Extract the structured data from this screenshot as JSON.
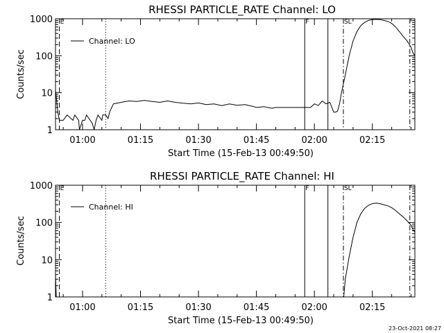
{
  "chart_data": [
    {
      "type": "line",
      "title": "RHESSI PARTICLE_RATE Channel: LO",
      "xlabel": "Start Time (15-Feb-13 00:49:50)",
      "ylabel": "Counts/sec",
      "yscale": "log",
      "ylim": [
        1,
        1000
      ],
      "xlim_minutes": [
        53.0,
        146.0
      ],
      "xtick_labels": [
        "01:00",
        "01:15",
        "01:30",
        "01:45",
        "02:00",
        "02:15"
      ],
      "ytick_labels": [
        "1",
        "10",
        "100",
        "1000"
      ],
      "legend": "Channel: LO",
      "legend_position": "top-left",
      "grid": false,
      "series": [
        {
          "name": "Channel: LO",
          "x_minutes": [
            53.0,
            53.6,
            54.0,
            55.0,
            56.0,
            57.5,
            58.0,
            59.0,
            59.2,
            60.0,
            60.6,
            61.0,
            62.0,
            62.5,
            63.0,
            63.5,
            64.0,
            65.0,
            65.2,
            66.0,
            66.6,
            67.0,
            68.0,
            70,
            72,
            74,
            76,
            78,
            80,
            82,
            84,
            86,
            88,
            90,
            92,
            94,
            96,
            98,
            100,
            102,
            104,
            105,
            107,
            109,
            110,
            112,
            113,
            115,
            117,
            118,
            119,
            120,
            121,
            122,
            123,
            124,
            125,
            125.5,
            126,
            126.5,
            127.0,
            128,
            129,
            130,
            131,
            132,
            133,
            134,
            135,
            136,
            137,
            138,
            139,
            140,
            141,
            142,
            143,
            144,
            145,
            145.5,
            146.0
          ],
          "y": [
            12,
            3,
            1.8,
            1.8,
            2.5,
            1.8,
            2.5,
            1.8,
            1.0,
            1.8,
            1.8,
            2.5,
            1.8,
            1.5,
            1.0,
            1.8,
            2.5,
            1.8,
            2.5,
            2.5,
            2.0,
            3.0,
            5.0,
            5.5,
            6.0,
            5.8,
            6.2,
            5.8,
            5.5,
            6.0,
            5.5,
            5.2,
            5.0,
            5.3,
            4.8,
            5.0,
            4.5,
            5.0,
            4.6,
            4.8,
            4.3,
            4.0,
            4.2,
            3.8,
            4.0,
            4.0,
            4.0,
            4.0,
            4.0,
            4.0,
            4.0,
            5.0,
            4.5,
            6.0,
            5.0,
            5.5,
            3.0,
            3.0,
            3.2,
            5.0,
            10,
            30,
            100,
            250,
            450,
            650,
            800,
            900,
            950,
            960,
            950,
            900,
            850,
            750,
            600,
            450,
            330,
            250,
            170,
            120,
            100
          ]
        }
      ],
      "vertical_markers": [
        {
          "style": "dashed",
          "x_minutes": 54.0,
          "label": "E"
        },
        {
          "style": "dotted",
          "x_minutes": 66.0,
          "label": ""
        },
        {
          "style": "solid",
          "x_minutes": 117.5,
          "label": "F"
        },
        {
          "style": "solid",
          "x_minutes": 123.5,
          "label": ""
        },
        {
          "style": "dash-dot",
          "x_minutes": 127.5,
          "label": "SL"
        },
        {
          "style": "dash-dot",
          "x_minutes": 144.7,
          "label": ""
        }
      ]
    },
    {
      "type": "line",
      "title": "RHESSI PARTICLE_RATE Channel: HI",
      "xlabel": "Start Time (15-Feb-13 00:49:50)",
      "ylabel": "Counts/sec",
      "yscale": "log",
      "ylim": [
        1,
        1000
      ],
      "xlim_minutes": [
        53.0,
        146.0
      ],
      "xtick_labels": [
        "01:00",
        "01:15",
        "01:30",
        "01:45",
        "02:00",
        "02:15"
      ],
      "ytick_labels": [
        "1",
        "10",
        "100",
        "1000"
      ],
      "legend": "Channel: HI",
      "legend_position": "top-left",
      "grid": false,
      "series": [
        {
          "name": "Channel: HI",
          "x_minutes": [
            127.6,
            128,
            129,
            130,
            131,
            132,
            133,
            134,
            135,
            136,
            137,
            138,
            139,
            140,
            141,
            142,
            143,
            144,
            145,
            145.5,
            146.0
          ],
          "y": [
            1.0,
            3,
            12,
            40,
            100,
            170,
            240,
            290,
            320,
            330,
            320,
            300,
            280,
            250,
            210,
            170,
            140,
            110,
            85,
            65,
            55
          ]
        },
        {
          "name": "",
          "x_minutes": [
            53.0,
            53.2
          ],
          "y": [
            4,
            1.0
          ]
        }
      ],
      "vertical_markers": [
        {
          "style": "dashed",
          "x_minutes": 54.0,
          "label": "E"
        },
        {
          "style": "dotted",
          "x_minutes": 66.0,
          "label": ""
        },
        {
          "style": "solid",
          "x_minutes": 117.5,
          "label": "F"
        },
        {
          "style": "solid",
          "x_minutes": 123.5,
          "label": ""
        },
        {
          "style": "dash-dot",
          "x_minutes": 127.5,
          "label": "SL"
        },
        {
          "style": "dash-dot",
          "x_minutes": 144.7,
          "label": ""
        }
      ]
    }
  ],
  "footer": {
    "timestamp": "23-Oct-2021 08:27"
  }
}
